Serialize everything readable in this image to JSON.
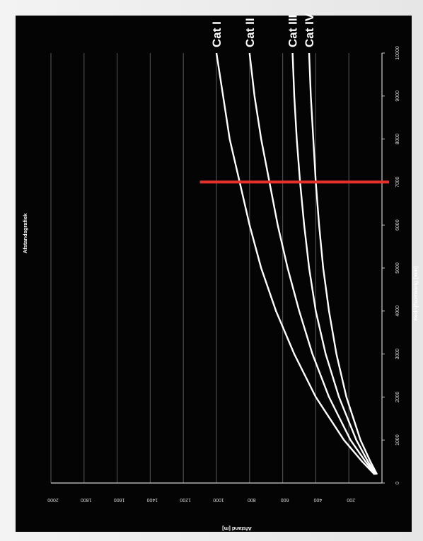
{
  "chart_data": {
    "type": "line",
    "title": "Afstandsgrafiek",
    "xlabel": "Bedrijfsomvang [mm]",
    "ylabel": "Afstand [m]",
    "xlim": [
      0,
      10000
    ],
    "ylim": [
      0,
      2000
    ],
    "x_ticks": [
      "0",
      "1000",
      "2000",
      "3000",
      "4000",
      "5000",
      "6000",
      "7000",
      "8000",
      "9000",
      "10000"
    ],
    "y_ticks": [
      "200",
      "400",
      "600",
      "800",
      "1000",
      "1200",
      "1400",
      "1600",
      "1800",
      "2000"
    ],
    "grid": true,
    "x": [
      200,
      500,
      1000,
      2000,
      3000,
      4000,
      5000,
      6000,
      7000,
      8000,
      9000,
      10000
    ],
    "series": [
      {
        "name": "Cat I",
        "values": [
          45,
          120,
          230,
          400,
          530,
          640,
          730,
          800,
          860,
          920,
          960,
          1000
        ]
      },
      {
        "name": "Cat II",
        "values": [
          40,
          100,
          190,
          320,
          420,
          500,
          570,
          630,
          680,
          730,
          770,
          800
        ]
      },
      {
        "name": "Cat III",
        "values": [
          35,
          85,
          155,
          260,
          340,
          400,
          440,
          470,
          495,
          515,
          530,
          540
        ]
      },
      {
        "name": "Cat IV",
        "values": [
          30,
          70,
          130,
          215,
          275,
          320,
          355,
          380,
          400,
          415,
          430,
          440
        ]
      }
    ],
    "marker": {
      "x": 7000,
      "y_range": [
        0,
        1100
      ],
      "color": "#e8302a"
    },
    "colors": {
      "background": "#000000",
      "lines": "#ffffff",
      "grid": "#4a4a4a",
      "marker": "#e8302a"
    }
  }
}
